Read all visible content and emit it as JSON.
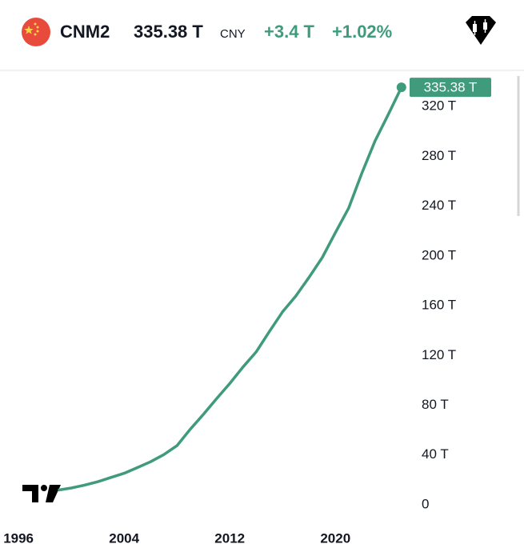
{
  "header": {
    "symbol": "CNM2",
    "price": "335.38 T",
    "currency": "CNY",
    "change": "+3.4 T",
    "change_percent": "+1.02%"
  },
  "chart_data": {
    "type": "line",
    "color": "#3f9b7b",
    "x": [
      1999,
      2000,
      2001,
      2002,
      2003,
      2004,
      2005,
      2006,
      2007,
      2008,
      2009,
      2010,
      2011,
      2012,
      2013,
      2014,
      2015,
      2016,
      2017,
      2018,
      2019,
      2020,
      2021,
      2022,
      2023,
      2024,
      2025
    ],
    "values": [
      11.8,
      13.5,
      15.8,
      18.5,
      22,
      25.3,
      29.9,
      34.6,
      40.3,
      47.5,
      60.6,
      72.6,
      85.2,
      97.4,
      110.7,
      122.8,
      139.2,
      155,
      167.7,
      182.7,
      198.6,
      218.7,
      238.3,
      266.4,
      292.3,
      313.5,
      335.38
    ],
    "value_labels": [
      null,
      null,
      null,
      null,
      null,
      null,
      null,
      null,
      null,
      null,
      null,
      null,
      null,
      null,
      null,
      null,
      null,
      null,
      null,
      null,
      null,
      null,
      null,
      null,
      null,
      null,
      "335.38 T"
    ],
    "xlim": [
      1994.6,
      2025.8
    ],
    "xticks": [
      1996,
      2004,
      2012,
      2020
    ],
    "ylim": [
      -31.5,
      347.7
    ],
    "yticks": [
      0,
      {
        "value": 40,
        "label": "40 T"
      },
      {
        "value": 80,
        "label": "80 T"
      },
      {
        "value": 120,
        "label": "120 T"
      },
      {
        "value": 160,
        "label": "160 T"
      },
      {
        "value": 200,
        "label": "200 T"
      },
      {
        "value": 240,
        "label": "240 T"
      },
      {
        "value": 280,
        "label": "280 T"
      },
      {
        "value": 320,
        "label": "320 T"
      }
    ]
  }
}
